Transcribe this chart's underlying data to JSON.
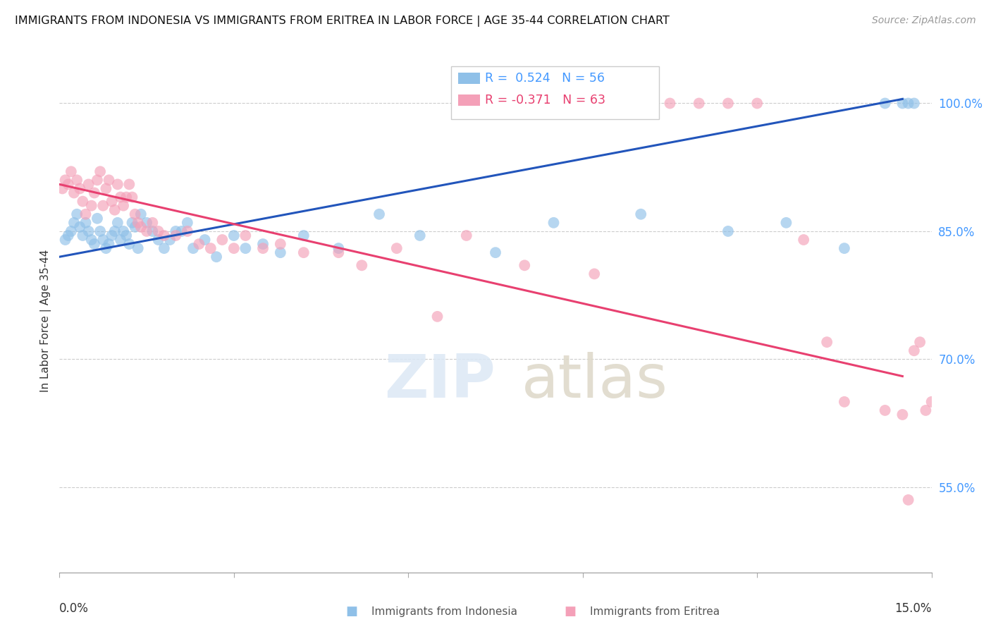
{
  "title": "IMMIGRANTS FROM INDONESIA VS IMMIGRANTS FROM ERITREA IN LABOR FORCE | AGE 35-44 CORRELATION CHART",
  "source": "Source: ZipAtlas.com",
  "ylabel": "In Labor Force | Age 35-44",
  "ytick_positions": [
    55.0,
    70.0,
    85.0,
    100.0
  ],
  "xlim": [
    0.0,
    15.0
  ],
  "ylim": [
    45.0,
    104.0
  ],
  "legend_r_indonesia": "R =  0.524",
  "legend_n_indonesia": "N = 56",
  "legend_r_eritrea": "R = -0.371",
  "legend_n_eritrea": "N = 63",
  "color_indonesia": "#8FC0E8",
  "color_eritrea": "#F4A0B8",
  "line_color_indonesia": "#2255BB",
  "line_color_eritrea": "#E84070",
  "blue_line_x0": 0.0,
  "blue_line_y0": 82.0,
  "blue_line_x1": 14.5,
  "blue_line_y1": 100.5,
  "pink_line_x0": 0.0,
  "pink_line_y0": 90.5,
  "pink_line_x1": 14.5,
  "pink_line_y1": 68.0,
  "indonesia_x": [
    0.1,
    0.15,
    0.2,
    0.25,
    0.3,
    0.35,
    0.4,
    0.45,
    0.5,
    0.55,
    0.6,
    0.65,
    0.7,
    0.75,
    0.8,
    0.85,
    0.9,
    0.95,
    1.0,
    1.05,
    1.1,
    1.15,
    1.2,
    1.25,
    1.3,
    1.35,
    1.4,
    1.5,
    1.6,
    1.7,
    1.8,
    1.9,
    2.0,
    2.1,
    2.2,
    2.3,
    2.5,
    2.7,
    3.0,
    3.2,
    3.5,
    3.8,
    4.2,
    4.8,
    5.5,
    6.2,
    7.5,
    8.5,
    10.0,
    11.5,
    12.5,
    13.5,
    14.2,
    14.5,
    14.6,
    14.7
  ],
  "indonesia_y": [
    84.0,
    84.5,
    85.0,
    86.0,
    87.0,
    85.5,
    84.5,
    86.0,
    85.0,
    84.0,
    83.5,
    86.5,
    85.0,
    84.0,
    83.0,
    83.5,
    84.5,
    85.0,
    86.0,
    84.0,
    85.0,
    84.5,
    83.5,
    86.0,
    85.5,
    83.0,
    87.0,
    86.0,
    85.0,
    84.0,
    83.0,
    84.0,
    85.0,
    85.0,
    86.0,
    83.0,
    84.0,
    82.0,
    84.5,
    83.0,
    83.5,
    82.5,
    84.5,
    83.0,
    87.0,
    84.5,
    82.5,
    86.0,
    87.0,
    85.0,
    86.0,
    83.0,
    100.0,
    100.0,
    100.0,
    100.0
  ],
  "eritrea_x": [
    0.05,
    0.1,
    0.15,
    0.2,
    0.25,
    0.3,
    0.35,
    0.4,
    0.45,
    0.5,
    0.55,
    0.6,
    0.65,
    0.7,
    0.75,
    0.8,
    0.85,
    0.9,
    0.95,
    1.0,
    1.05,
    1.1,
    1.15,
    1.2,
    1.25,
    1.3,
    1.35,
    1.4,
    1.5,
    1.6,
    1.7,
    1.8,
    2.0,
    2.2,
    2.4,
    2.6,
    2.8,
    3.0,
    3.2,
    3.5,
    3.8,
    4.2,
    4.8,
    5.2,
    5.8,
    6.5,
    7.0,
    8.0,
    9.2,
    10.5,
    11.0,
    11.5,
    12.0,
    12.8,
    13.2,
    13.5,
    14.2,
    14.5,
    14.6,
    14.7,
    14.8,
    14.9,
    15.0
  ],
  "eritrea_y": [
    90.0,
    91.0,
    90.5,
    92.0,
    89.5,
    91.0,
    90.0,
    88.5,
    87.0,
    90.5,
    88.0,
    89.5,
    91.0,
    92.0,
    88.0,
    90.0,
    91.0,
    88.5,
    87.5,
    90.5,
    89.0,
    88.0,
    89.0,
    90.5,
    89.0,
    87.0,
    86.0,
    85.5,
    85.0,
    86.0,
    85.0,
    84.5,
    84.5,
    85.0,
    83.5,
    83.0,
    84.0,
    83.0,
    84.5,
    83.0,
    83.5,
    82.5,
    82.5,
    81.0,
    83.0,
    75.0,
    84.5,
    81.0,
    80.0,
    100.0,
    100.0,
    100.0,
    100.0,
    84.0,
    72.0,
    65.0,
    64.0,
    63.5,
    53.5,
    71.0,
    72.0,
    64.0,
    65.0
  ]
}
